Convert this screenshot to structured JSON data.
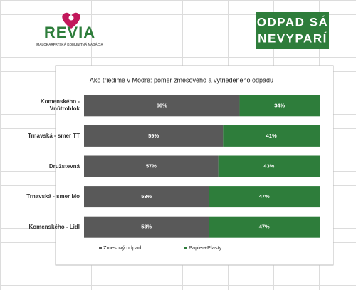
{
  "header": {
    "logo_left": "REVIA",
    "logo_left_subtitle": "MALOKARPATSKÁ KOMUNITNÁ NADÁCIA",
    "logo_right_line1": "ODPAD SÁ",
    "logo_right_line2": "NEVYPARÍ"
  },
  "chart_data": {
    "type": "stacked-barh",
    "title": "Ako triedime v Modre: pomer zmesového a vytriedeného odpadu",
    "categories": [
      "Komenského - Vnútroblok",
      "Trnavská - smer TT",
      "Družstevná",
      "Trnavská - smer Mo",
      "Komenského - Lidl"
    ],
    "series": [
      {
        "name": "Zmesový odpad",
        "color": "#595959",
        "values": [
          66,
          59,
          57,
          53,
          53
        ],
        "value_labels": [
          "66%",
          "59%",
          "57%",
          "53%",
          "53%"
        ]
      },
      {
        "name": "Papier+Plasty",
        "color": "#2e7d3b",
        "values": [
          34,
          41,
          43,
          47,
          47
        ],
        "value_labels": [
          "34%",
          "41%",
          "43%",
          "47%",
          "47%"
        ]
      }
    ],
    "xlim": [
      0,
      100
    ],
    "legend": "bottom"
  }
}
